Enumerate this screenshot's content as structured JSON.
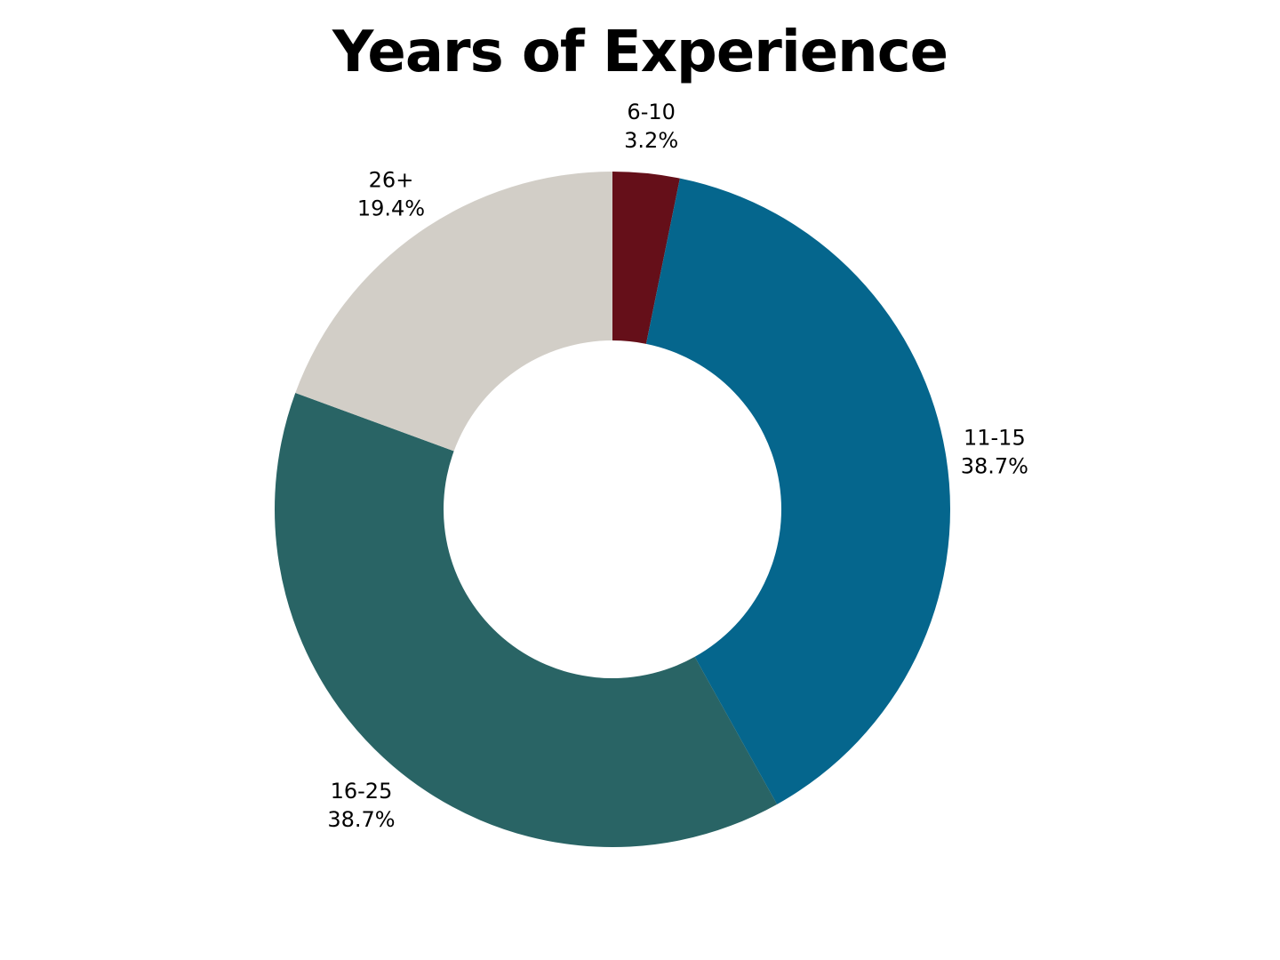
{
  "chart_data": {
    "type": "pie",
    "variant": "donut",
    "title": "Years of Experience",
    "start_angle": "top",
    "direction": "clockwise",
    "slices": [
      {
        "category": "6-10",
        "value": 3.2,
        "label": "3.2%",
        "color": "#650f19"
      },
      {
        "category": "11-15",
        "value": 38.7,
        "label": "38.7%",
        "color": "#05668d"
      },
      {
        "category": "16-25",
        "value": 38.7,
        "label": "38.7%",
        "color": "#296465"
      },
      {
        "category": "26+",
        "value": 19.4,
        "label": "19.4%",
        "color": "#d2cec7"
      }
    ]
  }
}
